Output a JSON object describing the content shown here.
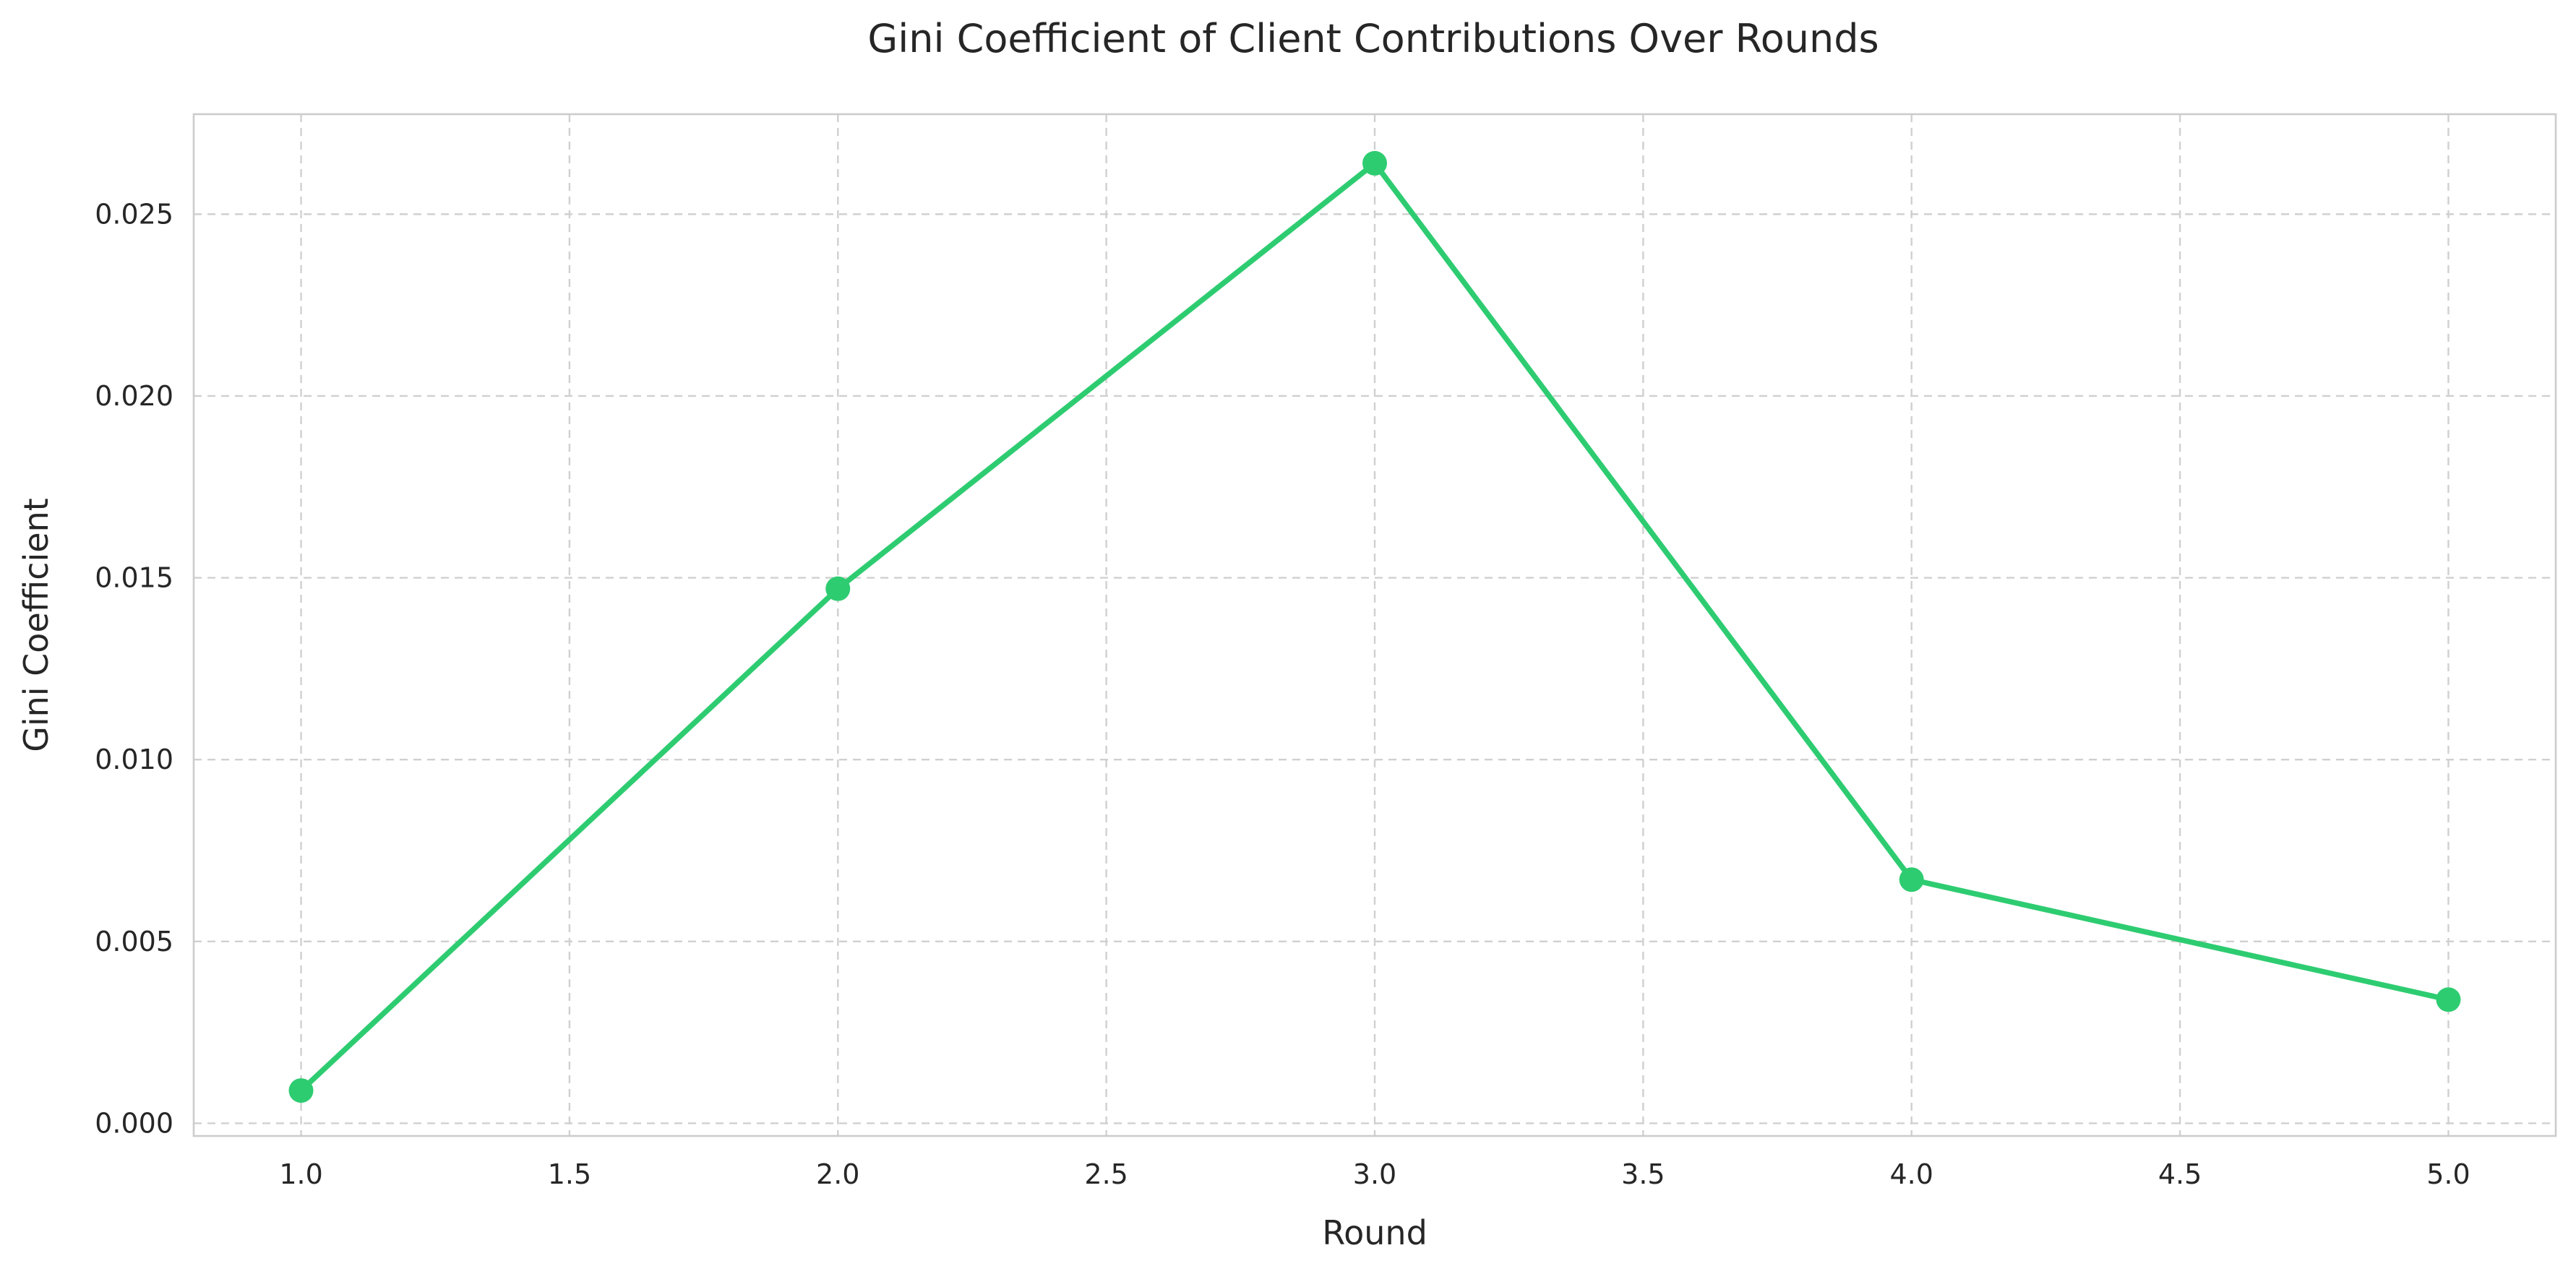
{
  "chart_data": {
    "type": "line",
    "title": "Gini Coefficient of Client Contributions Over Rounds",
    "xlabel": "Round",
    "ylabel": "Gini Coefficient",
    "xlim": [
      0.8,
      5.2
    ],
    "ylim": [
      -0.00035,
      0.02775
    ],
    "x_ticks": [
      1.0,
      1.5,
      2.0,
      2.5,
      3.0,
      3.5,
      4.0,
      4.5,
      5.0
    ],
    "x_tick_labels": [
      "1.0",
      "1.5",
      "2.0",
      "2.5",
      "3.0",
      "3.5",
      "4.0",
      "4.5",
      "5.0"
    ],
    "y_ticks": [
      0.0,
      0.005,
      0.01,
      0.015,
      0.02,
      0.025
    ],
    "y_tick_labels": [
      "0.000",
      "0.005",
      "0.010",
      "0.015",
      "0.020",
      "0.025"
    ],
    "grid": true,
    "legend": "none",
    "series": [
      {
        "x": [
          1,
          2,
          3,
          4,
          5
        ],
        "values": [
          0.0009,
          0.0147,
          0.0264,
          0.0067,
          0.0034
        ],
        "color": "#2ecc71"
      }
    ]
  }
}
